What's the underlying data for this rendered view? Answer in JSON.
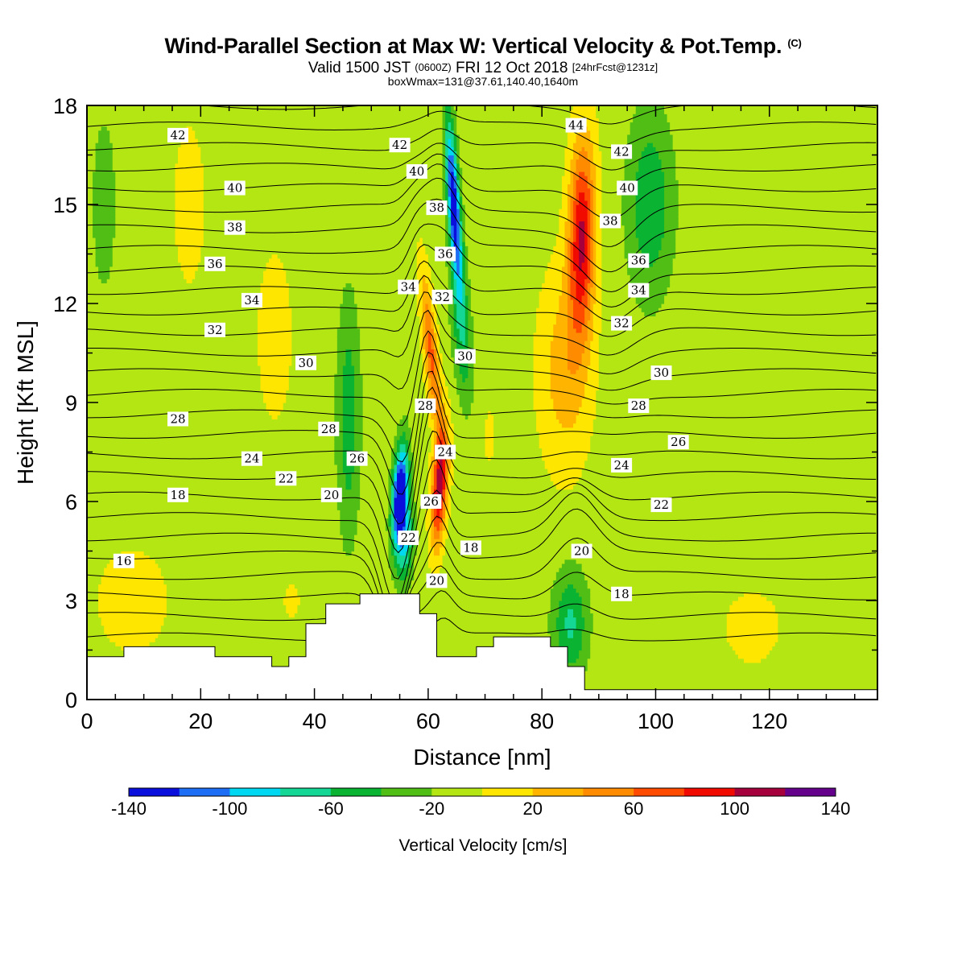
{
  "titles": {
    "main": "Wind-Parallel Section at Max W: Vertical Velocity & Pot.Temp.",
    "main_mark": "(C)",
    "valid_prefix": "Valid 1500 JST",
    "valid_utc": "(0600Z)",
    "valid_date": "FRI 12 Oct 2018",
    "valid_forecast": "[24hrFcst@1231z]",
    "boxwmax": "boxWmax=131@37.61,140.40,1640m"
  },
  "chart_data": {
    "type": "contour",
    "xlabel": "Distance [nm]",
    "ylabel": "Height [Kft MSL]",
    "xlim": [
      0,
      139
    ],
    "ylim": [
      0,
      18
    ],
    "x_ticks": [
      0,
      20,
      40,
      60,
      80,
      100,
      120
    ],
    "y_ticks": [
      0,
      3,
      6,
      9,
      12,
      15,
      18
    ],
    "colorbar": {
      "title": "Vertical Velocity [cm/s]",
      "levels": [
        -140,
        -120,
        -100,
        -80,
        -60,
        -40,
        -20,
        0,
        20,
        40,
        60,
        80,
        100,
        120,
        140
      ],
      "tick_labels": [
        -140,
        -100,
        -60,
        -20,
        20,
        60,
        100,
        140
      ],
      "colors": [
        "#0a0fdc",
        "#1e6ef5",
        "#00d7f0",
        "#14d796",
        "#0ab432",
        "#50be14",
        "#b4e614",
        "#ffe600",
        "#ffb400",
        "#ff8c00",
        "#ff4b00",
        "#f00a00",
        "#a5003c",
        "#64008c"
      ]
    },
    "terrain": [
      [
        0,
        1.3
      ],
      [
        6.5,
        1.3
      ],
      [
        6.5,
        1.6
      ],
      [
        22.5,
        1.6
      ],
      [
        22.5,
        1.3
      ],
      [
        32.5,
        1.3
      ],
      [
        32.5,
        1.0
      ],
      [
        35.5,
        1.0
      ],
      [
        35.5,
        1.3
      ],
      [
        38.5,
        1.3
      ],
      [
        38.5,
        2.3
      ],
      [
        42,
        2.3
      ],
      [
        42,
        2.9
      ],
      [
        48,
        2.9
      ],
      [
        48,
        3.2
      ],
      [
        58.5,
        3.2
      ],
      [
        58.5,
        2.6
      ],
      [
        61.5,
        2.6
      ],
      [
        61.5,
        1.3
      ],
      [
        68.5,
        1.3
      ],
      [
        68.5,
        1.6
      ],
      [
        71.5,
        1.6
      ],
      [
        71.5,
        1.9
      ],
      [
        81.5,
        1.9
      ],
      [
        81.5,
        1.6
      ],
      [
        84.5,
        1.6
      ],
      [
        84.5,
        1.0
      ],
      [
        87.5,
        1.0
      ],
      [
        87.5,
        0.3
      ],
      [
        139,
        0.3
      ]
    ],
    "theta_levels": [
      16,
      17,
      18,
      19,
      20,
      21,
      22,
      23,
      24,
      25,
      26,
      27,
      28,
      29,
      30,
      31,
      32,
      33,
      34,
      35,
      36,
      37,
      38,
      39,
      40,
      41,
      42,
      43,
      44
    ],
    "contour_labels": [
      {
        "text": "42",
        "x": 16,
        "y": 17.1
      },
      {
        "text": "40",
        "x": 26,
        "y": 15.5
      },
      {
        "text": "38",
        "x": 26,
        "y": 14.3
      },
      {
        "text": "36",
        "x": 22.5,
        "y": 13.2
      },
      {
        "text": "34",
        "x": 29,
        "y": 12.1
      },
      {
        "text": "32",
        "x": 22.5,
        "y": 11.2
      },
      {
        "text": "30",
        "x": 38.5,
        "y": 10.2
      },
      {
        "text": "28",
        "x": 16,
        "y": 8.5
      },
      {
        "text": "28",
        "x": 42.5,
        "y": 8.2
      },
      {
        "text": "26",
        "x": 47.5,
        "y": 7.3
      },
      {
        "text": "24",
        "x": 29,
        "y": 7.3
      },
      {
        "text": "22",
        "x": 35,
        "y": 6.7
      },
      {
        "text": "20",
        "x": 43,
        "y": 6.2
      },
      {
        "text": "18",
        "x": 16,
        "y": 6.2
      },
      {
        "text": "16",
        "x": 6.5,
        "y": 4.2
      },
      {
        "text": "42",
        "x": 55,
        "y": 16.8
      },
      {
        "text": "40",
        "x": 58,
        "y": 16.0
      },
      {
        "text": "38",
        "x": 61.5,
        "y": 14.9
      },
      {
        "text": "36",
        "x": 63,
        "y": 13.5
      },
      {
        "text": "34",
        "x": 56.5,
        "y": 12.5
      },
      {
        "text": "32",
        "x": 62.5,
        "y": 12.2
      },
      {
        "text": "30",
        "x": 66.5,
        "y": 10.4
      },
      {
        "text": "28",
        "x": 59.5,
        "y": 8.9
      },
      {
        "text": "24",
        "x": 63,
        "y": 7.5
      },
      {
        "text": "26",
        "x": 60.5,
        "y": 6.0
      },
      {
        "text": "22",
        "x": 56.5,
        "y": 4.9
      },
      {
        "text": "18",
        "x": 67.5,
        "y": 4.6
      },
      {
        "text": "20",
        "x": 61.5,
        "y": 3.6
      },
      {
        "text": "44",
        "x": 86,
        "y": 17.4
      },
      {
        "text": "42",
        "x": 94,
        "y": 16.6
      },
      {
        "text": "40",
        "x": 95,
        "y": 15.5
      },
      {
        "text": "38",
        "x": 92,
        "y": 14.5
      },
      {
        "text": "36",
        "x": 97,
        "y": 13.3
      },
      {
        "text": "34",
        "x": 97,
        "y": 12.4
      },
      {
        "text": "32",
        "x": 94,
        "y": 11.4
      },
      {
        "text": "30",
        "x": 101,
        "y": 9.9
      },
      {
        "text": "28",
        "x": 97,
        "y": 8.9
      },
      {
        "text": "26",
        "x": 104,
        "y": 7.8
      },
      {
        "text": "24",
        "x": 94,
        "y": 7.1
      },
      {
        "text": "22",
        "x": 101,
        "y": 5.9
      },
      {
        "text": "20",
        "x": 87,
        "y": 4.5
      },
      {
        "text": "18",
        "x": 94,
        "y": 3.2
      }
    ]
  }
}
